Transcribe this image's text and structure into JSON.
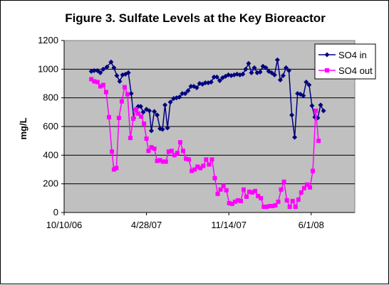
{
  "chart_data": {
    "type": "line",
    "title": "Figure 3. Sulfate Levels at the Key Bioreactor",
    "xlabel": "",
    "ylabel": "mg/L",
    "ylim": [
      0,
      1200
    ],
    "yticks": [
      0,
      200,
      400,
      600,
      800,
      1000,
      1200
    ],
    "xlim": [
      "2006-10-10",
      "2008-09-15"
    ],
    "xticks": [
      {
        "date": "2006-10-10",
        "label": "10/10/06"
      },
      {
        "date": "2007-04-28",
        "label": "4/28/07"
      },
      {
        "date": "2007-11-14",
        "label": "11/14/07"
      },
      {
        "date": "2008-06-01",
        "label": "6/1/08"
      }
    ],
    "grid": "horizontal",
    "legend_position": "top-right",
    "plot_background": "#C0C0C0",
    "series": [
      {
        "name": "SO4 in",
        "color": "#000080",
        "marker": "diamond",
        "points": [
          [
            "2006-12-15",
            985
          ],
          [
            "2006-12-22",
            990
          ],
          [
            "2006-12-30",
            990
          ],
          [
            "2007-01-06",
            975
          ],
          [
            "2007-01-13",
            1000
          ],
          [
            "2007-01-22",
            1015
          ],
          [
            "2007-02-01",
            1050
          ],
          [
            "2007-02-08",
            1010
          ],
          [
            "2007-02-15",
            955
          ],
          [
            "2007-02-22",
            915
          ],
          [
            "2007-03-01",
            960
          ],
          [
            "2007-03-08",
            965
          ],
          [
            "2007-03-15",
            975
          ],
          [
            "2007-03-22",
            830
          ],
          [
            "2007-03-28",
            660
          ],
          [
            "2007-04-02",
            720
          ],
          [
            "2007-04-08",
            740
          ],
          [
            "2007-04-14",
            740
          ],
          [
            "2007-04-20",
            700
          ],
          [
            "2007-04-28",
            720
          ],
          [
            "2007-05-05",
            710
          ],
          [
            "2007-05-10",
            570
          ],
          [
            "2007-05-17",
            705
          ],
          [
            "2007-05-24",
            680
          ],
          [
            "2007-05-31",
            585
          ],
          [
            "2007-06-06",
            580
          ],
          [
            "2007-06-12",
            750
          ],
          [
            "2007-06-18",
            590
          ],
          [
            "2007-06-25",
            770
          ],
          [
            "2007-07-03",
            795
          ],
          [
            "2007-07-10",
            800
          ],
          [
            "2007-07-17",
            805
          ],
          [
            "2007-07-24",
            830
          ],
          [
            "2007-07-31",
            830
          ],
          [
            "2007-08-07",
            850
          ],
          [
            "2007-08-14",
            880
          ],
          [
            "2007-08-21",
            880
          ],
          [
            "2007-08-28",
            870
          ],
          [
            "2007-09-04",
            900
          ],
          [
            "2007-09-11",
            895
          ],
          [
            "2007-09-18",
            905
          ],
          [
            "2007-09-25",
            905
          ],
          [
            "2007-10-02",
            910
          ],
          [
            "2007-10-09",
            945
          ],
          [
            "2007-10-16",
            945
          ],
          [
            "2007-10-23",
            920
          ],
          [
            "2007-10-30",
            940
          ],
          [
            "2007-11-06",
            950
          ],
          [
            "2007-11-13",
            960
          ],
          [
            "2007-11-20",
            955
          ],
          [
            "2007-11-27",
            960
          ],
          [
            "2007-12-04",
            965
          ],
          [
            "2007-12-11",
            960
          ],
          [
            "2007-12-18",
            965
          ],
          [
            "2007-12-25",
            1000
          ],
          [
            "2008-01-01",
            1040
          ],
          [
            "2008-01-08",
            975
          ],
          [
            "2008-01-15",
            1010
          ],
          [
            "2008-01-22",
            975
          ],
          [
            "2008-01-29",
            980
          ],
          [
            "2008-02-05",
            1020
          ],
          [
            "2008-02-12",
            1010
          ],
          [
            "2008-02-19",
            985
          ],
          [
            "2008-02-26",
            975
          ],
          [
            "2008-03-04",
            960
          ],
          [
            "2008-03-11",
            1065
          ],
          [
            "2008-03-18",
            925
          ],
          [
            "2008-03-25",
            955
          ],
          [
            "2008-04-01",
            1010
          ],
          [
            "2008-04-08",
            990
          ],
          [
            "2008-04-15",
            680
          ],
          [
            "2008-04-22",
            525
          ],
          [
            "2008-04-29",
            830
          ],
          [
            "2008-05-06",
            825
          ],
          [
            "2008-05-13",
            815
          ],
          [
            "2008-05-20",
            910
          ],
          [
            "2008-05-27",
            890
          ],
          [
            "2008-06-03",
            745
          ],
          [
            "2008-06-10",
            665
          ],
          [
            "2008-06-17",
            660
          ],
          [
            "2008-06-24",
            750
          ],
          [
            "2008-07-01",
            710
          ]
        ]
      },
      {
        "name": "SO4 out",
        "color": "#FF00FF",
        "marker": "square",
        "points": [
          [
            "2006-12-15",
            930
          ],
          [
            "2006-12-22",
            915
          ],
          [
            "2006-12-30",
            910
          ],
          [
            "2007-01-06",
            880
          ],
          [
            "2007-01-13",
            890
          ],
          [
            "2007-01-20",
            840
          ],
          [
            "2007-01-27",
            665
          ],
          [
            "2007-02-03",
            425
          ],
          [
            "2007-02-08",
            300
          ],
          [
            "2007-02-14",
            310
          ],
          [
            "2007-02-20",
            660
          ],
          [
            "2007-02-27",
            775
          ],
          [
            "2007-03-06",
            875
          ],
          [
            "2007-03-13",
            825
          ],
          [
            "2007-03-20",
            520
          ],
          [
            "2007-03-27",
            655
          ],
          [
            "2007-04-03",
            720
          ],
          [
            "2007-04-08",
            690
          ],
          [
            "2007-04-15",
            670
          ],
          [
            "2007-04-22",
            620
          ],
          [
            "2007-04-28",
            515
          ],
          [
            "2007-05-03",
            430
          ],
          [
            "2007-05-10",
            455
          ],
          [
            "2007-05-17",
            445
          ],
          [
            "2007-05-24",
            360
          ],
          [
            "2007-05-31",
            365
          ],
          [
            "2007-06-07",
            355
          ],
          [
            "2007-06-14",
            355
          ],
          [
            "2007-06-21",
            425
          ],
          [
            "2007-06-28",
            430
          ],
          [
            "2007-07-05",
            400
          ],
          [
            "2007-07-12",
            415
          ],
          [
            "2007-07-19",
            490
          ],
          [
            "2007-07-26",
            430
          ],
          [
            "2007-08-02",
            375
          ],
          [
            "2007-08-09",
            370
          ],
          [
            "2007-08-16",
            290
          ],
          [
            "2007-08-23",
            300
          ],
          [
            "2007-08-30",
            320
          ],
          [
            "2007-09-06",
            310
          ],
          [
            "2007-09-13",
            325
          ],
          [
            "2007-09-20",
            370
          ],
          [
            "2007-09-27",
            335
          ],
          [
            "2007-10-04",
            370
          ],
          [
            "2007-10-11",
            240
          ],
          [
            "2007-10-18",
            130
          ],
          [
            "2007-10-25",
            160
          ],
          [
            "2007-11-01",
            185
          ],
          [
            "2007-11-08",
            155
          ],
          [
            "2007-11-15",
            65
          ],
          [
            "2007-11-22",
            60
          ],
          [
            "2007-11-29",
            75
          ],
          [
            "2007-12-06",
            85
          ],
          [
            "2007-12-13",
            80
          ],
          [
            "2007-12-20",
            160
          ],
          [
            "2007-12-27",
            110
          ],
          [
            "2008-01-03",
            145
          ],
          [
            "2008-01-10",
            140
          ],
          [
            "2008-01-17",
            150
          ],
          [
            "2008-01-24",
            115
          ],
          [
            "2008-01-31",
            100
          ],
          [
            "2008-02-07",
            40
          ],
          [
            "2008-02-14",
            40
          ],
          [
            "2008-02-21",
            45
          ],
          [
            "2008-02-28",
            45
          ],
          [
            "2008-03-06",
            50
          ],
          [
            "2008-03-13",
            75
          ],
          [
            "2008-03-20",
            160
          ],
          [
            "2008-03-27",
            215
          ],
          [
            "2008-04-03",
            85
          ],
          [
            "2008-04-10",
            40
          ],
          [
            "2008-04-17",
            80
          ],
          [
            "2008-04-24",
            40
          ],
          [
            "2008-05-01",
            90
          ],
          [
            "2008-05-08",
            140
          ],
          [
            "2008-05-15",
            170
          ],
          [
            "2008-05-22",
            195
          ],
          [
            "2008-05-29",
            175
          ],
          [
            "2008-06-05",
            290
          ],
          [
            "2008-06-12",
            710
          ],
          [
            "2008-06-19",
            500
          ]
        ]
      }
    ]
  }
}
